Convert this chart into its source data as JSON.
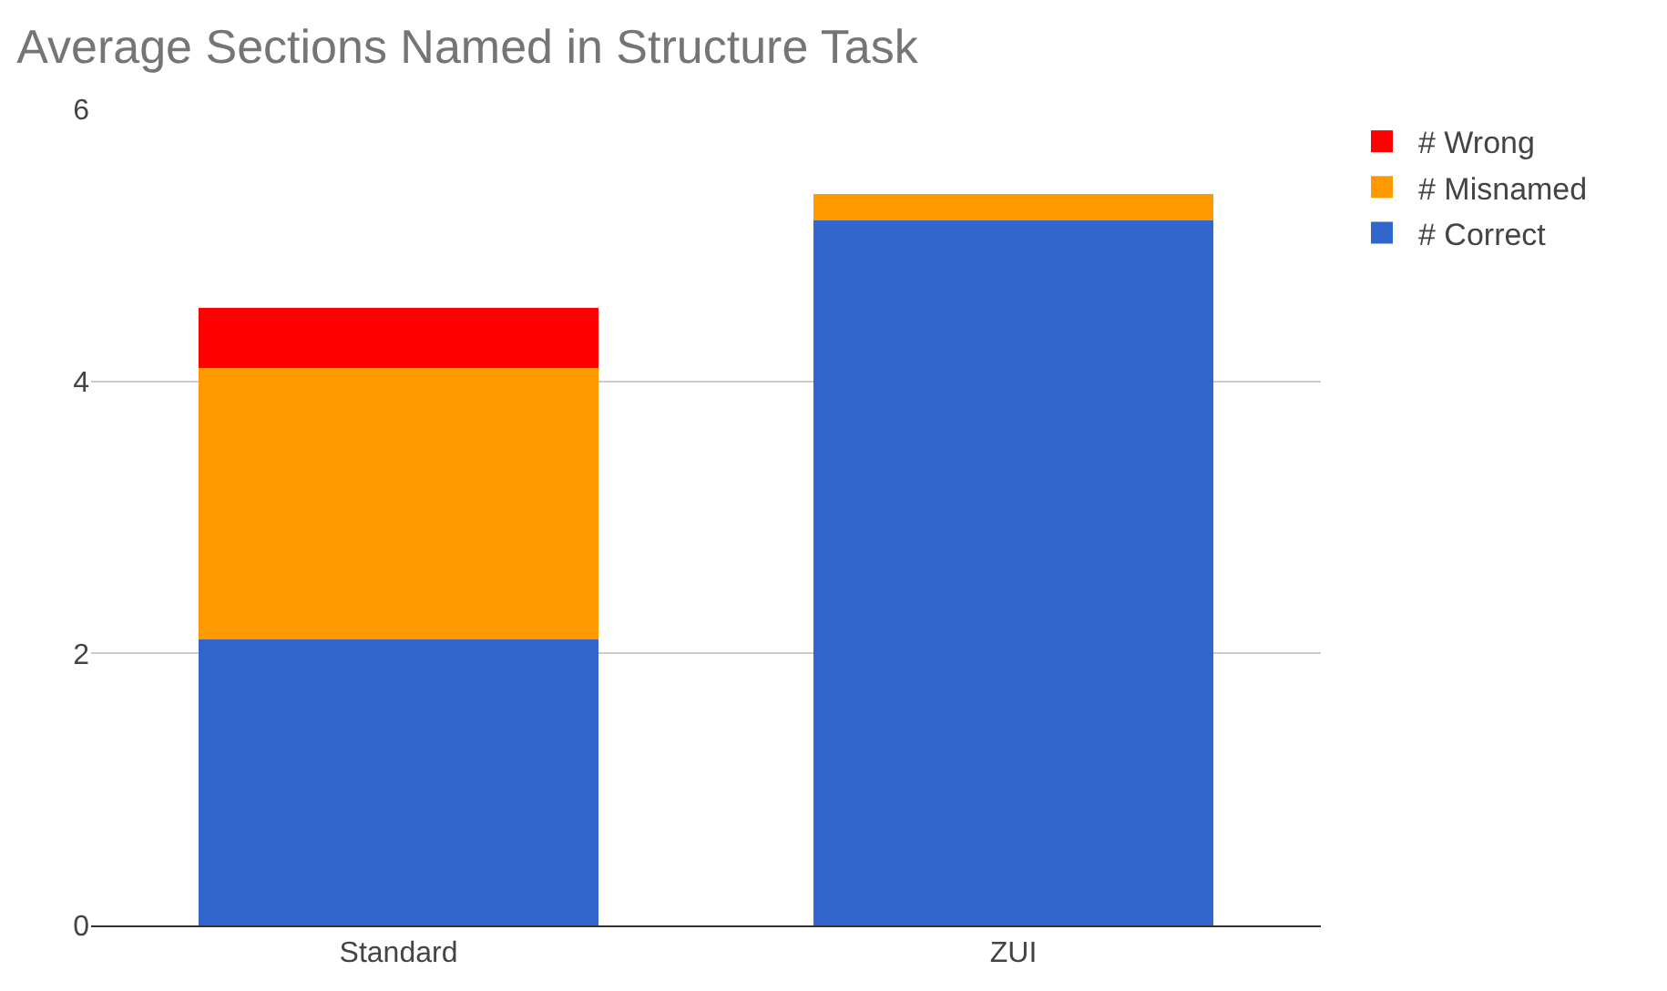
{
  "chart_data": {
    "type": "bar",
    "title": "Average Sections Named in Structure Task",
    "categories": [
      "Standard",
      "ZUI"
    ],
    "stacked": true,
    "series": [
      {
        "name": "# Correct",
        "color": "#3366cc",
        "values": [
          2.1,
          5.18
        ]
      },
      {
        "name": "# Misnamed",
        "color": "#ff9900",
        "values": [
          2.0,
          0.2
        ]
      },
      {
        "name": "# Wrong",
        "color": "#ff0000",
        "values": [
          0.44,
          0
        ]
      }
    ],
    "ylim": [
      0,
      6
    ],
    "yticks": [
      0,
      2,
      4,
      6
    ],
    "grid": "y",
    "legend": "top right"
  }
}
